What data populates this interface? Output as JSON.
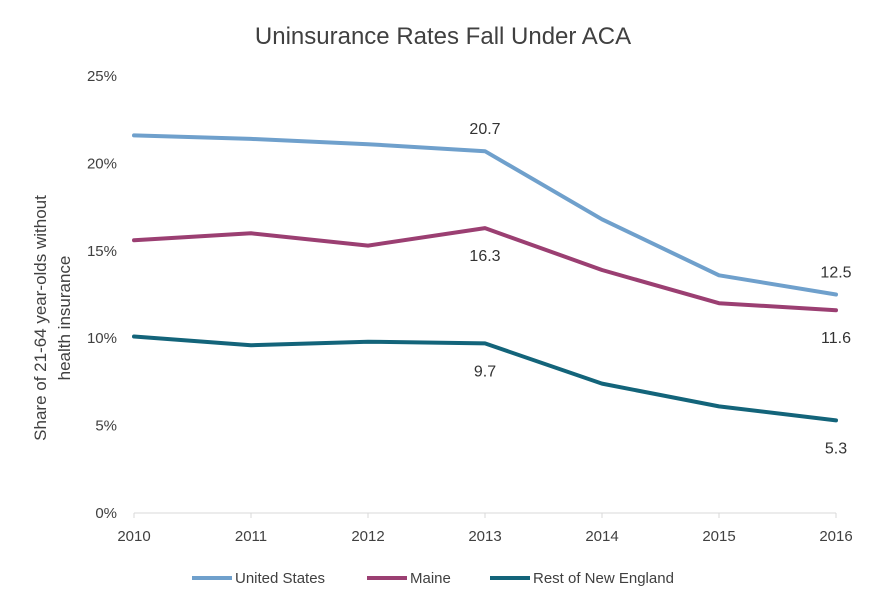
{
  "chart_data": {
    "type": "line",
    "title": "Uninsurance Rates Fall Under ACA",
    "ylabel": "Share of 21-64 year-olds without health insurance",
    "ylabel_lines": [
      "Share of 21-64 year-olds without",
      "health insurance"
    ],
    "xlabel": "",
    "x": [
      "2010",
      "2011",
      "2012",
      "2013",
      "2014",
      "2015",
      "2016"
    ],
    "ylim": [
      0,
      25
    ],
    "yticks": [
      0,
      5,
      10,
      15,
      20,
      25
    ],
    "ytick_labels": [
      "0%",
      "5%",
      "10%",
      "15%",
      "20%",
      "25%"
    ],
    "grid": false,
    "legend_position": "bottom",
    "series": [
      {
        "name": "United States",
        "color": "#6fa0cc",
        "values": [
          21.6,
          21.4,
          21.1,
          20.7,
          16.8,
          13.6,
          12.5
        ]
      },
      {
        "name": "Maine",
        "color": "#9b3f72",
        "values": [
          15.6,
          16.0,
          15.3,
          16.3,
          13.9,
          12.0,
          11.6
        ]
      },
      {
        "name": "Rest of New England",
        "color": "#13647a",
        "values": [
          10.1,
          9.6,
          9.8,
          9.7,
          7.4,
          6.1,
          5.3
        ]
      }
    ],
    "annotations": [
      {
        "series": 0,
        "index": 3,
        "text": "20.7",
        "placement": "above"
      },
      {
        "series": 0,
        "index": 6,
        "text": "12.5",
        "placement": "above"
      },
      {
        "series": 1,
        "index": 3,
        "text": "16.3",
        "placement": "below"
      },
      {
        "series": 1,
        "index": 6,
        "text": "11.6",
        "placement": "below"
      },
      {
        "series": 2,
        "index": 3,
        "text": "9.7",
        "placement": "below"
      },
      {
        "series": 2,
        "index": 6,
        "text": "5.3",
        "placement": "below"
      }
    ]
  }
}
